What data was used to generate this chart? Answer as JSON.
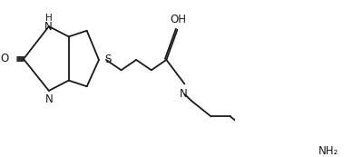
{
  "bg_color": "#ffffff",
  "line_color": "#1a1a1a",
  "lw": 1.3,
  "font_size": 8.5,
  "figsize": [
    3.89,
    1.73
  ],
  "dpi": 100,
  "xlim": [
    0,
    389
  ],
  "ylim": [
    0,
    173
  ]
}
